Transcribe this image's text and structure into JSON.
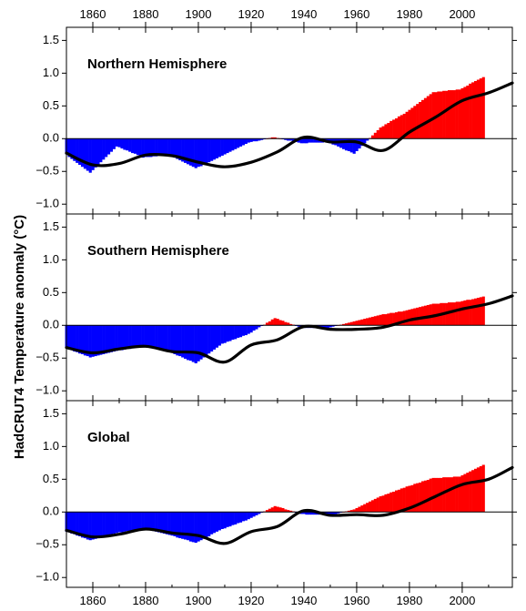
{
  "chart_data": {
    "type": "bar",
    "ylabel": "HadCRUT4  Temperature anomaly (°C)",
    "xlim": [
      1850,
      2019
    ],
    "x_ticks": [
      1860,
      1880,
      1900,
      1920,
      1940,
      1960,
      1980,
      2000
    ],
    "y_ticks": [
      -1.0,
      -0.5,
      0.0,
      0.5,
      1.0,
      1.5
    ],
    "ylim": [
      -1.15,
      1.7
    ],
    "grid": false,
    "colors": {
      "positive": "#ff0000",
      "negative": "#0000ff",
      "smooth": "#000000"
    },
    "smooth_knots": [
      1850,
      1860,
      1870,
      1880,
      1890,
      1900,
      1910,
      1920,
      1930,
      1940,
      1950,
      1960,
      1970,
      1980,
      1990,
      2000,
      2010,
      2019
    ],
    "panels": [
      {
        "title": "Northern Hemisphere",
        "annual_anomalies": [
          -0.24,
          -0.28,
          -0.31,
          -0.34,
          -0.37,
          -0.4,
          -0.43,
          -0.46,
          -0.49,
          -0.52,
          -0.48,
          -0.44,
          -0.4,
          -0.36,
          -0.32,
          -0.28,
          -0.24,
          -0.2,
          -0.16,
          -0.12,
          -0.13,
          -0.15,
          -0.17,
          -0.18,
          -0.2,
          -0.22,
          -0.23,
          -0.25,
          -0.27,
          -0.29,
          -0.28,
          -0.28,
          -0.28,
          -0.27,
          -0.27,
          -0.26,
          -0.26,
          -0.25,
          -0.25,
          -0.25,
          -0.27,
          -0.29,
          -0.31,
          -0.33,
          -0.35,
          -0.37,
          -0.39,
          -0.41,
          -0.43,
          -0.45,
          -0.43,
          -0.42,
          -0.4,
          -0.38,
          -0.36,
          -0.34,
          -0.32,
          -0.3,
          -0.28,
          -0.26,
          -0.24,
          -0.22,
          -0.2,
          -0.18,
          -0.16,
          -0.14,
          -0.12,
          -0.1,
          -0.08,
          -0.06,
          -0.05,
          -0.04,
          -0.04,
          -0.03,
          -0.02,
          -0.01,
          0.0,
          0.01,
          0.02,
          0.02,
          0.01,
          0.0,
          -0.01,
          -0.02,
          -0.03,
          -0.03,
          -0.04,
          -0.05,
          -0.06,
          -0.07,
          -0.07,
          -0.07,
          -0.06,
          -0.06,
          -0.06,
          -0.06,
          -0.06,
          -0.06,
          -0.05,
          -0.05,
          -0.07,
          -0.09,
          -0.1,
          -0.12,
          -0.14,
          -0.16,
          -0.18,
          -0.19,
          -0.21,
          -0.23,
          -0.19,
          -0.15,
          -0.11,
          -0.07,
          -0.03,
          0.01,
          0.05,
          0.09,
          0.13,
          0.17,
          0.19,
          0.22,
          0.24,
          0.27,
          0.29,
          0.31,
          0.34,
          0.36,
          0.38,
          0.41,
          0.44,
          0.47,
          0.5,
          0.53,
          0.56,
          0.59,
          0.62,
          0.65,
          0.68,
          0.71,
          0.71,
          0.72,
          0.72,
          0.73,
          0.73,
          0.74,
          0.74,
          0.74,
          0.75,
          0.75,
          0.77,
          0.79,
          0.81,
          0.84,
          0.86,
          0.88,
          0.9,
          0.92,
          0.94
        ],
        "smooth": [
          -0.22,
          -0.4,
          -0.38,
          -0.25,
          -0.26,
          -0.36,
          -0.43,
          -0.36,
          -0.2,
          0.02,
          -0.05,
          -0.05,
          -0.18,
          0.1,
          0.33,
          0.58,
          0.7,
          0.85
        ]
      },
      {
        "title": "Southern Hemisphere",
        "annual_anomalies": [
          -0.35,
          -0.37,
          -0.38,
          -0.4,
          -0.41,
          -0.43,
          -0.44,
          -0.46,
          -0.47,
          -0.49,
          -0.48,
          -0.47,
          -0.46,
          -0.45,
          -0.44,
          -0.43,
          -0.42,
          -0.41,
          -0.4,
          -0.39,
          -0.38,
          -0.38,
          -0.37,
          -0.36,
          -0.36,
          -0.35,
          -0.34,
          -0.33,
          -0.33,
          -0.32,
          -0.32,
          -0.33,
          -0.34,
          -0.35,
          -0.36,
          -0.37,
          -0.38,
          -0.39,
          -0.4,
          -0.41,
          -0.42,
          -0.44,
          -0.46,
          -0.47,
          -0.49,
          -0.51,
          -0.53,
          -0.54,
          -0.56,
          -0.58,
          -0.55,
          -0.52,
          -0.49,
          -0.46,
          -0.43,
          -0.4,
          -0.37,
          -0.34,
          -0.31,
          -0.28,
          -0.27,
          -0.25,
          -0.24,
          -0.22,
          -0.21,
          -0.19,
          -0.18,
          -0.16,
          -0.15,
          -0.13,
          -0.11,
          -0.08,
          -0.06,
          -0.03,
          -0.01,
          0.01,
          0.04,
          0.06,
          0.09,
          0.11,
          0.1,
          0.08,
          0.07,
          0.05,
          0.04,
          0.02,
          0.01,
          -0.01,
          -0.02,
          -0.04,
          -0.04,
          -0.04,
          -0.04,
          -0.04,
          -0.04,
          -0.04,
          -0.04,
          -0.04,
          -0.04,
          -0.04,
          -0.03,
          -0.02,
          -0.01,
          0.0,
          0.01,
          0.02,
          0.03,
          0.04,
          0.05,
          0.06,
          0.07,
          0.08,
          0.09,
          0.1,
          0.11,
          0.12,
          0.13,
          0.14,
          0.15,
          0.16,
          0.17,
          0.17,
          0.18,
          0.19,
          0.19,
          0.2,
          0.21,
          0.21,
          0.22,
          0.23,
          0.24,
          0.25,
          0.26,
          0.27,
          0.28,
          0.29,
          0.3,
          0.31,
          0.32,
          0.33,
          0.33,
          0.33,
          0.34,
          0.34,
          0.34,
          0.35,
          0.35,
          0.35,
          0.36,
          0.36,
          0.37,
          0.38,
          0.39,
          0.39,
          0.4,
          0.41,
          0.42,
          0.43,
          0.44
        ],
        "smooth": [
          -0.34,
          -0.42,
          -0.36,
          -0.32,
          -0.4,
          -0.42,
          -0.56,
          -0.3,
          -0.22,
          -0.02,
          -0.06,
          -0.06,
          -0.03,
          0.08,
          0.15,
          0.25,
          0.33,
          0.45
        ]
      },
      {
        "title": "Global",
        "annual_anomalies": [
          -0.3,
          -0.31,
          -0.33,
          -0.34,
          -0.36,
          -0.37,
          -0.39,
          -0.4,
          -0.42,
          -0.43,
          -0.42,
          -0.41,
          -0.4,
          -0.39,
          -0.38,
          -0.36,
          -0.35,
          -0.34,
          -0.33,
          -0.32,
          -0.31,
          -0.31,
          -0.3,
          -0.29,
          -0.29,
          -0.28,
          -0.27,
          -0.26,
          -0.26,
          -0.25,
          -0.26,
          -0.27,
          -0.28,
          -0.29,
          -0.3,
          -0.31,
          -0.32,
          -0.33,
          -0.34,
          -0.35,
          -0.36,
          -0.37,
          -0.39,
          -0.4,
          -0.41,
          -0.42,
          -0.43,
          -0.45,
          -0.46,
          -0.47,
          -0.45,
          -0.43,
          -0.41,
          -0.39,
          -0.37,
          -0.34,
          -0.32,
          -0.3,
          -0.28,
          -0.26,
          -0.25,
          -0.23,
          -0.22,
          -0.2,
          -0.19,
          -0.17,
          -0.16,
          -0.14,
          -0.13,
          -0.11,
          -0.09,
          -0.07,
          -0.05,
          -0.03,
          -0.01,
          0.01,
          0.03,
          0.05,
          0.07,
          0.09,
          0.08,
          0.07,
          0.06,
          0.04,
          0.03,
          0.02,
          0.01,
          -0.01,
          -0.02,
          -0.03,
          -0.03,
          -0.04,
          -0.04,
          -0.04,
          -0.04,
          -0.04,
          -0.04,
          -0.04,
          -0.04,
          -0.05,
          -0.05,
          -0.04,
          -0.03,
          -0.02,
          -0.01,
          0.0,
          0.01,
          0.02,
          0.03,
          0.04,
          0.06,
          0.08,
          0.1,
          0.12,
          0.14,
          0.16,
          0.18,
          0.2,
          0.22,
          0.24,
          0.25,
          0.27,
          0.28,
          0.3,
          0.31,
          0.33,
          0.34,
          0.36,
          0.37,
          0.39,
          0.4,
          0.41,
          0.43,
          0.44,
          0.45,
          0.47,
          0.48,
          0.49,
          0.51,
          0.52,
          0.52,
          0.52,
          0.52,
          0.53,
          0.53,
          0.53,
          0.53,
          0.54,
          0.54,
          0.54,
          0.56,
          0.58,
          0.6,
          0.62,
          0.64,
          0.66,
          0.68,
          0.7,
          0.72
        ],
        "smooth": [
          -0.28,
          -0.38,
          -0.34,
          -0.26,
          -0.32,
          -0.36,
          -0.48,
          -0.3,
          -0.22,
          0.02,
          -0.05,
          -0.04,
          -0.05,
          0.06,
          0.24,
          0.42,
          0.5,
          0.68
        ]
      }
    ]
  }
}
